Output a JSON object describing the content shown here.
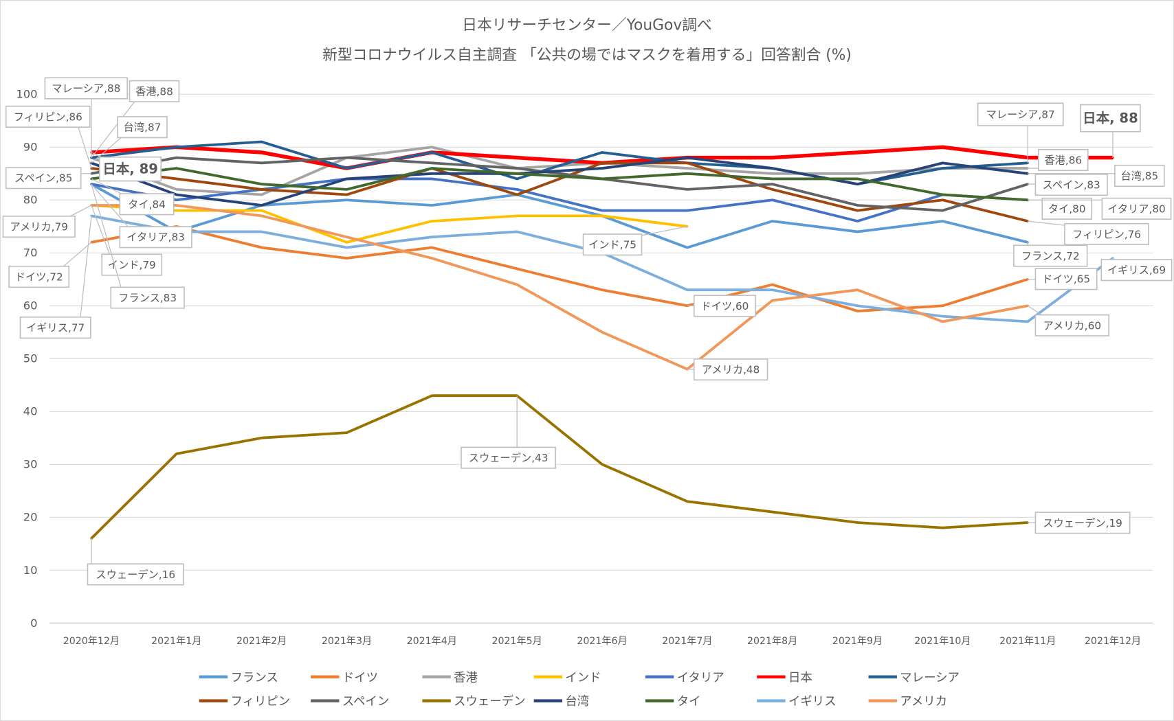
{
  "chart_data": {
    "type": "line",
    "title": "日本リサーチセンター／YouGov調べ",
    "subtitle": "新型コロナウイルス自主調査 「公共の場ではマスクを着用する」回答割合 (%)",
    "xlabel": "",
    "ylabel": "",
    "ylim": [
      0,
      100
    ],
    "yticks": [
      "0",
      "10",
      "20",
      "30",
      "40",
      "50",
      "60",
      "70",
      "80",
      "90",
      "100"
    ],
    "grid": true,
    "legend_position": "bottom",
    "categories": [
      "2020年12月",
      "2021年1月",
      "2021年2月",
      "2021年3月",
      "2021年4月",
      "2021年5月",
      "2021年6月",
      "2021年7月",
      "2021年8月",
      "2021年9月",
      "2021年10月",
      "2021年11月",
      "2021年12月"
    ],
    "series": [
      {
        "name": "フランス",
        "color": "#5B9BD5",
        "values": [
          83,
          74,
          79,
          80,
          79,
          81,
          77,
          71,
          76,
          74,
          76,
          72,
          null
        ]
      },
      {
        "name": "ドイツ",
        "color": "#ED7D31",
        "values": [
          72,
          75,
          71,
          69,
          71,
          67,
          63,
          60,
          64,
          59,
          60,
          65,
          null
        ]
      },
      {
        "name": "香港",
        "color": "#A5A5A5",
        "values": [
          88,
          82,
          81,
          88,
          90,
          86,
          87,
          86,
          85,
          85,
          86,
          86,
          null
        ]
      },
      {
        "name": "インド",
        "color": "#FFC000",
        "values": [
          79,
          78,
          78,
          72,
          76,
          77,
          77,
          75,
          null,
          null,
          null,
          null,
          null
        ]
      },
      {
        "name": "イタリア",
        "color": "#4472C4",
        "values": [
          83,
          80,
          82,
          84,
          84,
          82,
          78,
          78,
          80,
          76,
          81,
          80,
          null
        ]
      },
      {
        "name": "日本",
        "color": "#FF0000",
        "values": [
          89,
          90,
          89,
          86,
          89,
          88,
          87,
          88,
          88,
          89,
          90,
          88,
          88
        ]
      },
      {
        "name": "マレーシア",
        "color": "#255E91",
        "values": [
          88,
          90,
          91,
          86,
          89,
          84,
          89,
          87,
          86,
          83,
          86,
          87,
          null
        ]
      },
      {
        "name": "フィリピン",
        "color": "#9E480E",
        "values": [
          86,
          84,
          82,
          81,
          86,
          81,
          87,
          87,
          82,
          78,
          80,
          76,
          null
        ]
      },
      {
        "name": "スペイン",
        "color": "#636363",
        "values": [
          85,
          88,
          87,
          88,
          87,
          86,
          84,
          82,
          83,
          79,
          78,
          83,
          null
        ]
      },
      {
        "name": "スウェーデン",
        "color": "#997300",
        "values": [
          16,
          32,
          35,
          36,
          43,
          43,
          30,
          23,
          21,
          19,
          18,
          19,
          null
        ]
      },
      {
        "name": "台湾",
        "color": "#264478",
        "values": [
          87,
          81,
          79,
          84,
          85,
          85,
          86,
          88,
          86,
          83,
          87,
          85,
          null
        ]
      },
      {
        "name": "タイ",
        "color": "#43682B",
        "values": [
          84,
          86,
          83,
          82,
          86,
          85,
          84,
          85,
          84,
          84,
          81,
          80,
          null
        ]
      },
      {
        "name": "イギリス",
        "color": "#7CAFDD",
        "values": [
          77,
          74,
          74,
          71,
          73,
          74,
          70,
          63,
          63,
          60,
          58,
          57,
          69
        ]
      },
      {
        "name": "アメリカ",
        "color": "#F1975A",
        "values": [
          79,
          79,
          77,
          73,
          69,
          64,
          55,
          48,
          61,
          63,
          57,
          60,
          null
        ]
      }
    ],
    "data_labels": [
      "マレーシア,88",
      "香港,88",
      "フィリピン,86",
      "台湾,87",
      "日本, 89",
      "スペイン,85",
      "タイ,84",
      "アメリカ,79",
      "イタリア,83",
      "インド,79",
      "ドイツ,72",
      "フランス,83",
      "イギリス,77",
      "スウェーデン,16",
      "インド,75",
      "ドイツ,60",
      "アメリカ,48",
      "スウェーデン,43",
      "マレーシア,87",
      "日本, 88",
      "香港,86",
      "台湾,85",
      "スペイン,83",
      "タイ,80",
      "イタリア,80",
      "フィリピン,76",
      "フランス,72",
      "ドイツ,65",
      "イギリス,69",
      "アメリカ,60",
      "スウェーデン,19"
    ]
  }
}
